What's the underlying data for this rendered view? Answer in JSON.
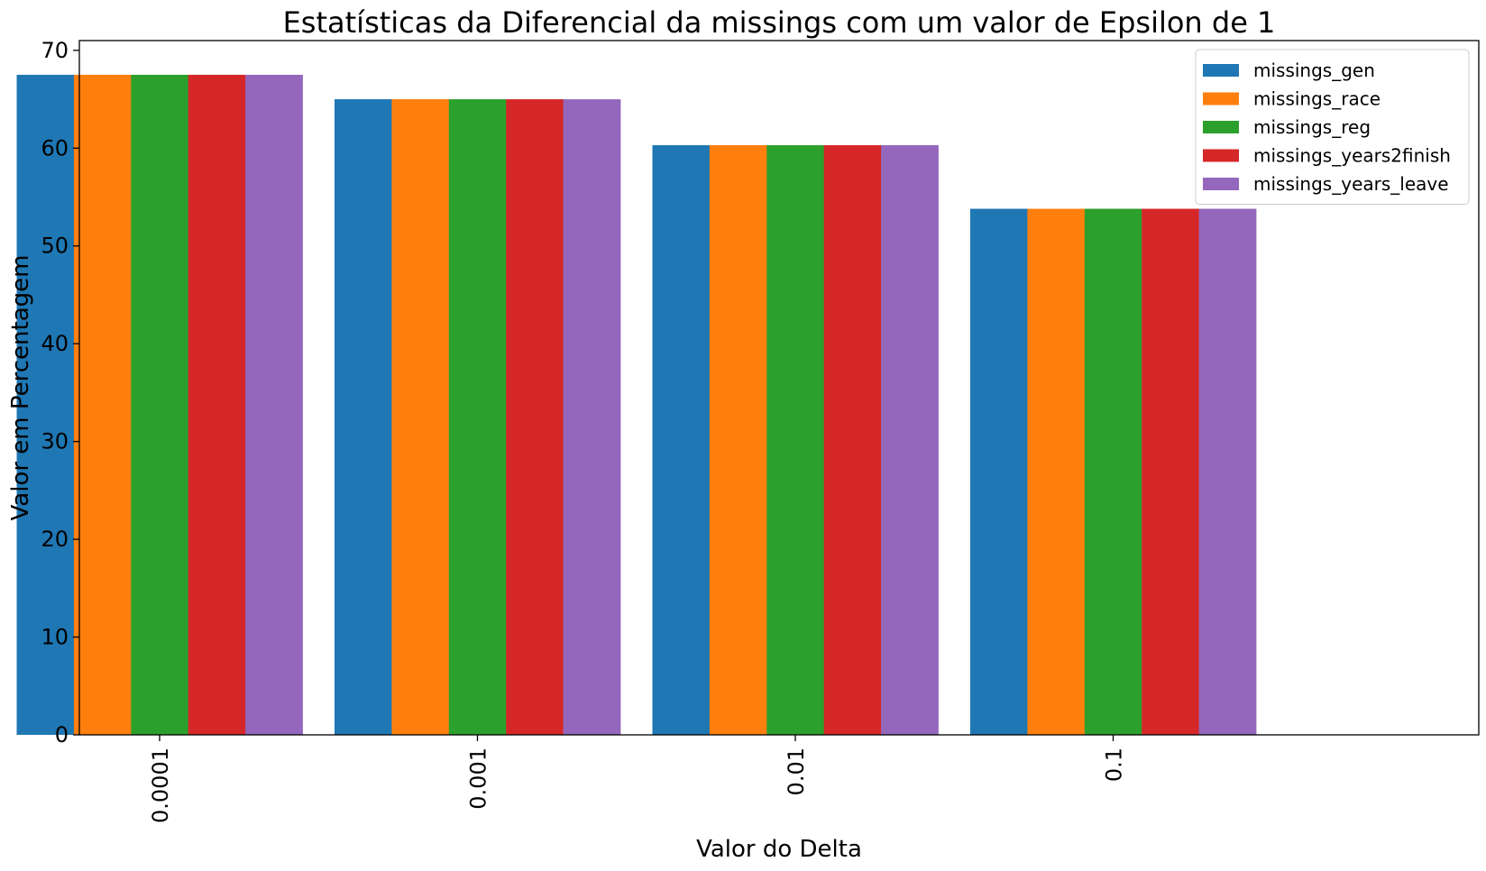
{
  "chart_data": {
    "type": "bar",
    "title": "Estatísticas da Diferencial da missings com um valor de Epsilon de 1",
    "xlabel": "Valor do Delta",
    "ylabel": "Valor em Percentagem",
    "categories": [
      "0.0001",
      "0.001",
      "0.01",
      "0.1"
    ],
    "ylim": [
      0,
      71
    ],
    "yticks": [
      0,
      10,
      20,
      30,
      40,
      50,
      60,
      70
    ],
    "grid": false,
    "legend_position": "top-right",
    "series": [
      {
        "name": "missings_gen",
        "color": "#1f77b4",
        "values": [
          67.5,
          65.0,
          60.3,
          53.8
        ]
      },
      {
        "name": "missings_race",
        "color": "#ff7f0e",
        "values": [
          67.5,
          65.0,
          60.3,
          53.8
        ]
      },
      {
        "name": "missings_reg",
        "color": "#2ca02c",
        "values": [
          67.5,
          65.0,
          60.3,
          53.8
        ]
      },
      {
        "name": "missings_years2finish",
        "color": "#d62728",
        "values": [
          67.5,
          65.0,
          60.3,
          53.8
        ]
      },
      {
        "name": "missings_years_leave",
        "color": "#9467bd",
        "values": [
          67.5,
          65.0,
          60.3,
          53.8
        ]
      }
    ]
  }
}
